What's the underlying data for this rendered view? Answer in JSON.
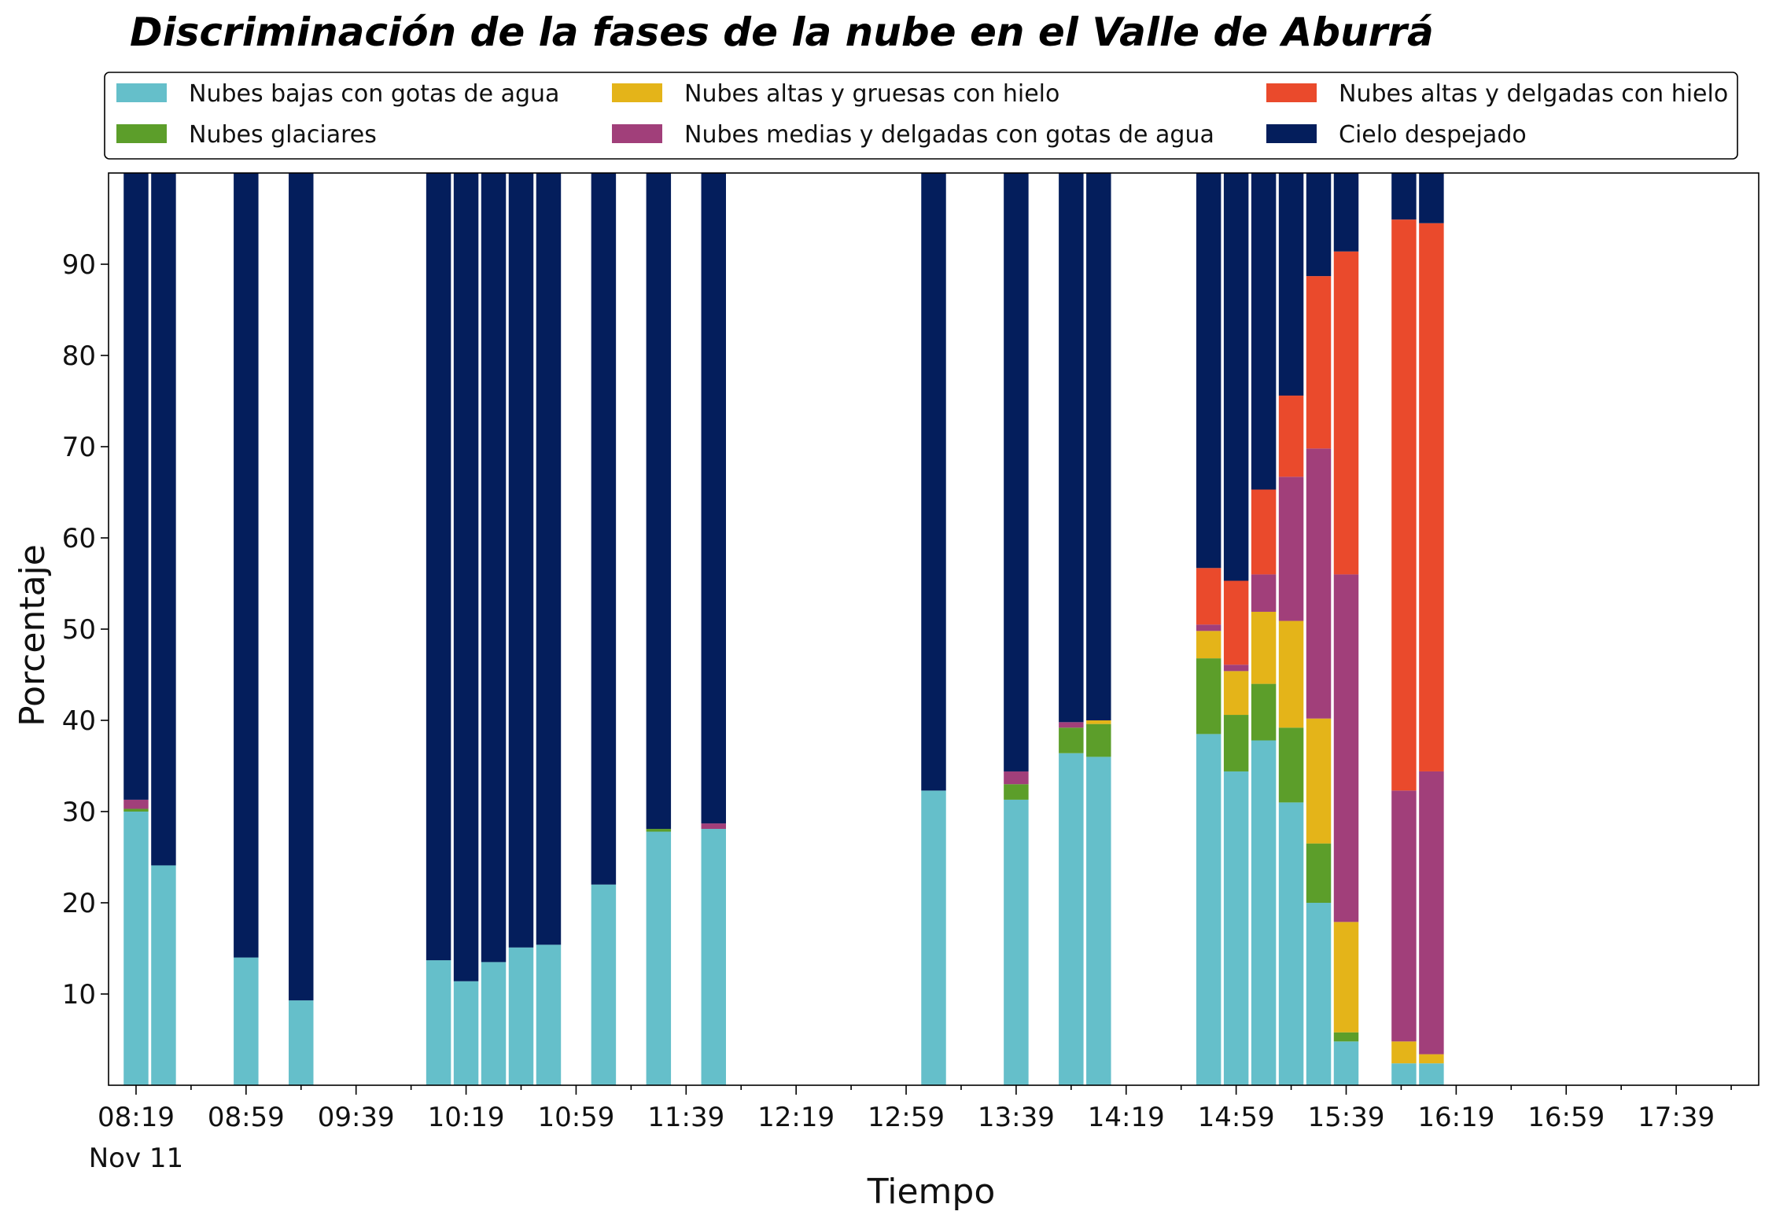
{
  "chart_data": {
    "type": "bar",
    "stacked": true,
    "title": "Discriminación de la fases de la nube en el Valle de Aburrá",
    "xlabel": "Tiempo",
    "ylabel": "Porcentaje",
    "ylim": [
      0,
      100
    ],
    "yticks": [
      10,
      20,
      30,
      40,
      50,
      60,
      70,
      80,
      90
    ],
    "xlim": [
      "08:09",
      "18:09"
    ],
    "xticks": [
      "08:19",
      "08:59",
      "09:39",
      "10:19",
      "10:59",
      "11:39",
      "12:19",
      "12:59",
      "13:39",
      "14:19",
      "14:59",
      "15:39",
      "16:19",
      "16:59",
      "17:39"
    ],
    "xtick_sublabel": "Nov 11",
    "legend_position": "top",
    "bar_width_minutes": 9,
    "times": [
      "08:19",
      "08:29",
      "08:59",
      "09:19",
      "10:09",
      "10:19",
      "10:29",
      "10:39",
      "10:49",
      "11:09",
      "11:29",
      "11:49",
      "13:09",
      "13:39",
      "13:59",
      "14:09",
      "14:49",
      "14:59",
      "15:09",
      "15:19",
      "15:29",
      "15:39",
      "16:00",
      "16:10"
    ],
    "series": [
      {
        "name": "Nubes bajas con gotas de agua",
        "color": "#65bfca",
        "values": [
          30,
          24.1,
          14,
          9.3,
          13.7,
          11.4,
          13.5,
          15.1,
          15.4,
          22,
          27.8,
          28.1,
          32.3,
          31.3,
          36.4,
          36,
          38.5,
          34.4,
          37.8,
          31,
          20,
          4.8,
          2.4,
          2.4
        ]
      },
      {
        "name": "Nubes glaciares",
        "color": "#5c9e2a",
        "values": [
          0.3,
          0,
          0,
          0,
          0,
          0,
          0,
          0,
          0,
          0,
          0.3,
          0,
          0,
          1.7,
          2.8,
          3.6,
          8.3,
          6.2,
          6.2,
          8.2,
          6.5,
          1,
          0,
          0
        ]
      },
      {
        "name": "Nubes altas y gruesas con hielo",
        "color": "#e4b419",
        "values": [
          0,
          0,
          0,
          0,
          0,
          0,
          0,
          0,
          0,
          0,
          0,
          0,
          0,
          0,
          0,
          0.4,
          3,
          4.8,
          7.9,
          11.7,
          13.7,
          12.1,
          2.4,
          1
        ]
      },
      {
        "name": "Nubes medias y delgadas con gotas de agua",
        "color": "#a13f7a",
        "values": [
          1,
          0,
          0,
          0,
          0,
          0,
          0,
          0,
          0,
          0,
          0,
          0.6,
          0,
          1.4,
          0.6,
          0,
          0.7,
          0.7,
          4.1,
          15.8,
          29.6,
          38.1,
          27.5,
          31
        ]
      },
      {
        "name": "Nubes altas y delgadas con hielo",
        "color": "#ea4a2c",
        "values": [
          0,
          0,
          0,
          0,
          0,
          0,
          0,
          0,
          0,
          0,
          0,
          0,
          0,
          0,
          0,
          0,
          6.2,
          9.2,
          9.3,
          8.9,
          18.9,
          35.4,
          62.6,
          60.1
        ]
      },
      {
        "name": "Cielo despejado",
        "color": "#041e5c",
        "values": [
          68.7,
          75.9,
          86,
          90.7,
          86.3,
          88.6,
          86.5,
          84.9,
          84.6,
          78,
          71.9,
          71.3,
          67.7,
          65.6,
          60.2,
          60,
          43.3,
          44.7,
          34.7,
          24.4,
          11.3,
          8.6,
          5.1,
          5.5
        ]
      }
    ]
  }
}
